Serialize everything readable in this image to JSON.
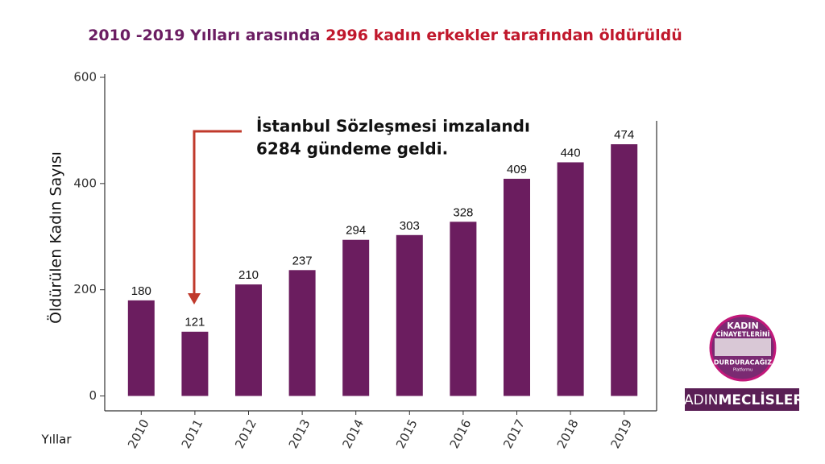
{
  "chart_data": {
    "type": "bar",
    "title": [
      "2010 -2019 Yılları arasında",
      "2996 kadın erkekler tarafından öldürüldü"
    ],
    "title_colors": [
      "#6b1d62",
      "#c0182c"
    ],
    "annotation": [
      "İstanbul Sözleşmesi imzalandı",
      "6284 gündeme geldi."
    ],
    "annotation_color": "#c0392b",
    "x_label": "Yıllar",
    "y_label": "Öldürülen Kadın Sayısı",
    "categories": [
      "2010",
      "2011",
      "2012",
      "2013",
      "2014",
      "2015",
      "2016",
      "2017",
      "2018",
      "2019"
    ],
    "values": [
      180,
      121,
      210,
      237,
      294,
      303,
      328,
      409,
      440,
      474
    ],
    "color": "#6b1d5f",
    "ylim": [
      -28,
      600
    ],
    "yticks": [
      0,
      200,
      400,
      600
    ],
    "grid": false
  },
  "logo": {
    "circle": [
      "KADIN",
      "CİNAYETLERİNİ",
      "DURDURACAĞIZ",
      "Platformu"
    ],
    "banner": [
      "KADIN",
      "MECLİSLERİ"
    ]
  }
}
